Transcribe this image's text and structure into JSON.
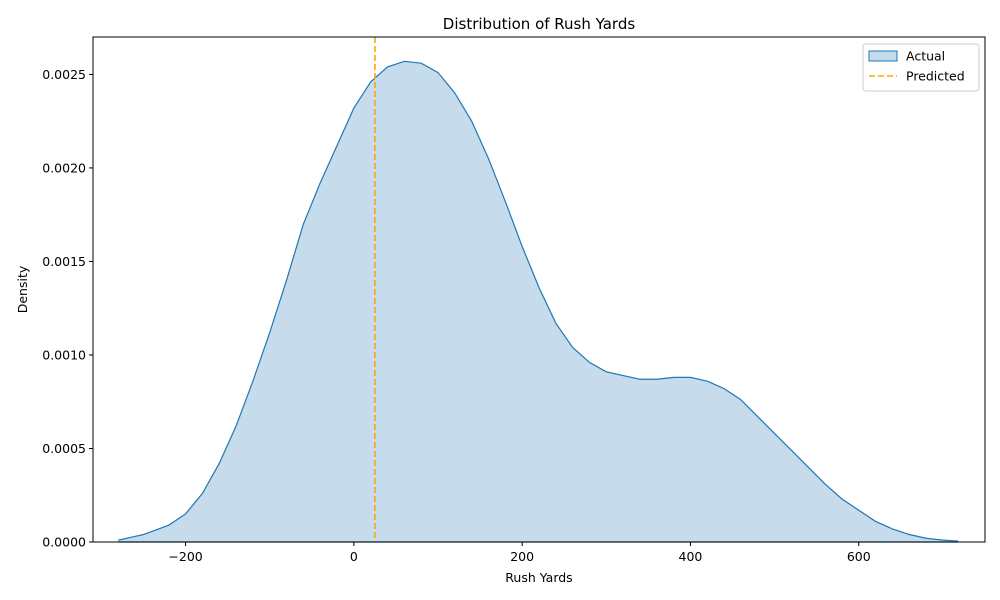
{
  "chart_data": {
    "type": "area",
    "title": "Distribution of Rush Yards",
    "xlabel": "Rush Yards",
    "ylabel": "Density",
    "xlim": [
      -310,
      750
    ],
    "ylim": [
      0,
      0.0027
    ],
    "x_ticks": [
      -200,
      0,
      200,
      400,
      600
    ],
    "x_tick_labels": [
      "−200",
      "0",
      "200",
      "400",
      "600"
    ],
    "y_ticks": [
      0,
      0.0005,
      0.001,
      0.0015,
      0.002,
      0.0025
    ],
    "y_tick_labels": [
      "0.0000",
      "0.0005",
      "0.0010",
      "0.0015",
      "0.0020",
      "0.0025"
    ],
    "grid": false,
    "legend_position": "top-right",
    "series": [
      {
        "name": "Actual",
        "kind": "kde-fill",
        "color": "#1f77b4",
        "fill_color": "#c6dbec",
        "x": [
          -280,
          -250,
          -220,
          -200,
          -180,
          -160,
          -140,
          -120,
          -100,
          -80,
          -60,
          -40,
          -20,
          0,
          20,
          40,
          60,
          80,
          100,
          120,
          140,
          160,
          180,
          200,
          220,
          240,
          260,
          280,
          300,
          320,
          340,
          360,
          380,
          400,
          420,
          440,
          460,
          480,
          500,
          520,
          540,
          560,
          580,
          600,
          620,
          640,
          660,
          680,
          700,
          718
        ],
        "y": [
          1e-05,
          4e-05,
          9e-05,
          0.00015,
          0.00026,
          0.00042,
          0.00062,
          0.00086,
          0.00112,
          0.0014,
          0.0017,
          0.00192,
          0.00212,
          0.00232,
          0.00246,
          0.00254,
          0.00257,
          0.00256,
          0.00251,
          0.0024,
          0.00225,
          0.00205,
          0.00182,
          0.00158,
          0.00136,
          0.00117,
          0.00104,
          0.00096,
          0.00091,
          0.00089,
          0.00087,
          0.00087,
          0.00088,
          0.00088,
          0.00086,
          0.00082,
          0.00076,
          0.00067,
          0.00058,
          0.00049,
          0.0004,
          0.00031,
          0.00023,
          0.00017,
          0.00011,
          7e-05,
          4e-05,
          2e-05,
          1e-05,
          5e-06
        ]
      },
      {
        "name": "Predicted",
        "kind": "vline",
        "color": "#ffa500",
        "dash": "dashed",
        "x_value": 25
      }
    ]
  }
}
